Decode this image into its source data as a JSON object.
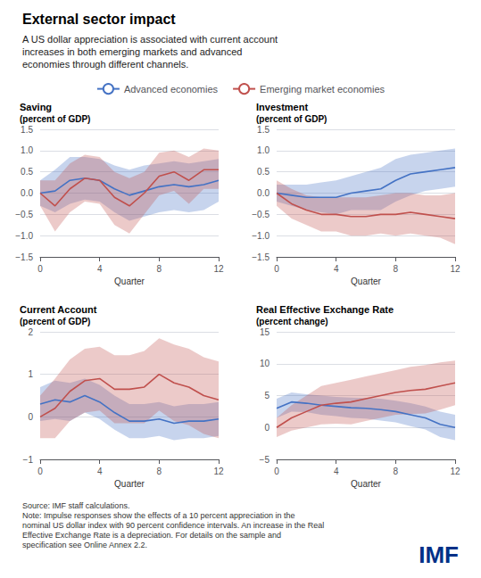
{
  "title": "External sector impact",
  "subtitle": "A US dollar appreciation is associated with current account\nincreases in both emerging markets and advanced\neconomies through different channels.",
  "legend": "upper center",
  "annotations": [
    {
      "text": "Source: IMF staff calculations.\nNote: Impulse responses show the effects of a 10 percent appreciation in the\nnominal US dollar index with 90 percent confidence intervals. An increase in the Real\nEffective Exchange Rate is a depreciation. For details on the sample and\nspecification see Online Annex 2.2."
    },
    {
      "text": "IMF",
      "color": "#003087"
    }
  ],
  "chart_data": [
    {
      "type": "line",
      "title": "Saving",
      "ylabel": "(percent of GDP)",
      "xlabel": "Quarter",
      "x": [
        0,
        1,
        2,
        3,
        4,
        5,
        6,
        7,
        8,
        9,
        10,
        11,
        12
      ],
      "xlim": [
        0,
        12
      ],
      "xticks": [
        0,
        4,
        8,
        12
      ],
      "ylim": [
        -1.5,
        1.5
      ],
      "yticks": [
        {
          "value": -1.5,
          "label": "−1.5"
        },
        {
          "value": -1.0,
          "label": "−1.0"
        },
        {
          "value": -0.5,
          "label": "−0.5"
        },
        {
          "value": 0.0,
          "label": "0.0"
        },
        0.5,
        {
          "value": 1.0,
          "label": "1.0"
        },
        1.5
      ],
      "grid": true,
      "series": [
        {
          "name": "Advanced economies",
          "color": "#4472c4",
          "values": [
            0.0,
            0.05,
            0.3,
            0.35,
            0.3,
            0.1,
            -0.05,
            0.05,
            0.15,
            0.2,
            0.15,
            0.2,
            0.3
          ],
          "upper": [
            0.3,
            0.55,
            0.85,
            0.85,
            0.8,
            0.65,
            0.55,
            0.65,
            0.7,
            0.75,
            0.7,
            0.75,
            0.8
          ],
          "lower": [
            -0.3,
            -0.45,
            -0.25,
            -0.15,
            -0.2,
            -0.45,
            -0.65,
            -0.55,
            -0.45,
            -0.4,
            -0.45,
            -0.4,
            -0.2
          ]
        },
        {
          "name": "Emerging market economies",
          "color": "#c0504d",
          "values": [
            0.0,
            -0.3,
            0.1,
            0.35,
            0.3,
            -0.1,
            -0.3,
            0.0,
            0.4,
            0.5,
            0.3,
            0.55,
            0.55
          ],
          "upper": [
            0.3,
            0.3,
            0.7,
            0.9,
            0.85,
            0.5,
            0.35,
            0.5,
            0.95,
            1.0,
            0.85,
            1.05,
            1.0
          ],
          "lower": [
            -0.3,
            -0.9,
            -0.45,
            -0.2,
            -0.25,
            -0.75,
            -0.95,
            -0.5,
            -0.05,
            0.05,
            -0.25,
            0.1,
            0.1
          ]
        }
      ]
    },
    {
      "type": "line",
      "title": "Investment",
      "ylabel": "(percent of GDP)",
      "xlabel": "Quarter",
      "x": [
        0,
        1,
        2,
        3,
        4,
        5,
        6,
        7,
        8,
        9,
        10,
        11,
        12
      ],
      "xlim": [
        0,
        12
      ],
      "xticks": [
        0,
        4,
        8,
        12
      ],
      "ylim": [
        -1.5,
        1.5
      ],
      "yticks": [
        {
          "value": -1.5,
          "label": "−1.5"
        },
        {
          "value": -1.0,
          "label": "−1.0"
        },
        {
          "value": -0.5,
          "label": "−0.5"
        },
        {
          "value": 0.0,
          "label": "0.0"
        },
        0.5,
        {
          "value": 1.0,
          "label": "1.0"
        },
        1.5
      ],
      "grid": true,
      "series": [
        {
          "name": "Advanced economies",
          "color": "#4472c4",
          "values": [
            0.0,
            -0.05,
            -0.1,
            -0.1,
            -0.1,
            0.0,
            0.05,
            0.1,
            0.3,
            0.45,
            0.5,
            0.55,
            0.6
          ],
          "upper": [
            0.2,
            0.2,
            0.2,
            0.25,
            0.3,
            0.4,
            0.5,
            0.6,
            0.8,
            0.9,
            0.95,
            1.0,
            1.05
          ],
          "lower": [
            -0.2,
            -0.3,
            -0.4,
            -0.45,
            -0.5,
            -0.4,
            -0.4,
            -0.4,
            -0.2,
            -0.05,
            0.05,
            0.1,
            0.15
          ]
        },
        {
          "name": "Emerging market economies",
          "color": "#c0504d",
          "values": [
            0.0,
            -0.25,
            -0.4,
            -0.5,
            -0.5,
            -0.55,
            -0.55,
            -0.5,
            -0.5,
            -0.45,
            -0.5,
            -0.55,
            -0.6
          ],
          "upper": [
            0.3,
            0.1,
            -0.05,
            -0.1,
            -0.1,
            -0.1,
            -0.1,
            -0.05,
            0.0,
            0.0,
            -0.05,
            -0.05,
            0.0
          ],
          "lower": [
            -0.3,
            -0.6,
            -0.75,
            -0.9,
            -0.9,
            -1.0,
            -1.0,
            -0.95,
            -1.0,
            -0.95,
            -1.0,
            -1.05,
            -1.2
          ]
        }
      ]
    },
    {
      "type": "line",
      "title": "Current Account",
      "ylabel": "(percent of GDP)",
      "xlabel": "Quarter",
      "x": [
        0,
        1,
        2,
        3,
        4,
        5,
        6,
        7,
        8,
        9,
        10,
        11,
        12
      ],
      "xlim": [
        0,
        12
      ],
      "xticks": [
        0,
        4,
        8,
        12
      ],
      "ylim": [
        -1.0,
        2.0
      ],
      "yticks": [
        {
          "value": -1,
          "label": "−1"
        },
        0,
        1,
        2
      ],
      "grid": true,
      "series": [
        {
          "name": "Advanced economies",
          "color": "#4472c4",
          "values": [
            0.3,
            0.4,
            0.35,
            0.5,
            0.35,
            0.1,
            -0.1,
            -0.1,
            -0.05,
            -0.15,
            -0.1,
            -0.1,
            -0.05
          ],
          "upper": [
            0.7,
            0.85,
            0.8,
            0.9,
            0.75,
            0.5,
            0.3,
            0.3,
            0.35,
            0.25,
            0.3,
            0.3,
            0.35
          ],
          "lower": [
            -0.1,
            -0.05,
            -0.1,
            0.1,
            -0.05,
            -0.3,
            -0.5,
            -0.5,
            -0.45,
            -0.55,
            -0.5,
            -0.5,
            -0.45
          ]
        },
        {
          "name": "Emerging market economies",
          "color": "#c0504d",
          "values": [
            0.0,
            0.2,
            0.6,
            0.85,
            0.9,
            0.65,
            0.65,
            0.7,
            1.0,
            0.8,
            0.7,
            0.5,
            0.4
          ],
          "upper": [
            0.5,
            0.9,
            1.35,
            1.6,
            1.65,
            1.45,
            1.45,
            1.55,
            1.85,
            1.7,
            1.6,
            1.4,
            1.3
          ],
          "lower": [
            -0.5,
            -0.5,
            -0.1,
            0.1,
            0.15,
            -0.15,
            -0.15,
            -0.15,
            0.15,
            -0.1,
            -0.2,
            -0.4,
            -0.5
          ]
        }
      ]
    },
    {
      "type": "line",
      "title": "Real Effective Exchange Rate",
      "ylabel": "(percent change)",
      "xlabel": "Quarter",
      "x": [
        0,
        1,
        2,
        3,
        4,
        5,
        6,
        7,
        8,
        9,
        10,
        11,
        12
      ],
      "xlim": [
        0,
        12
      ],
      "xticks": [
        0,
        4,
        8,
        12
      ],
      "ylim": [
        -5.0,
        15.0
      ],
      "yticks": [
        {
          "value": -5,
          "label": "−5"
        },
        0,
        5,
        10,
        15
      ],
      "grid": true,
      "series": [
        {
          "name": "Advanced economies",
          "color": "#4472c4",
          "values": [
            3.0,
            4.0,
            3.8,
            3.5,
            3.3,
            3.1,
            3.0,
            2.8,
            2.5,
            2.0,
            1.5,
            0.5,
            0.0
          ],
          "upper": [
            4.5,
            5.5,
            5.2,
            5.0,
            4.8,
            4.7,
            4.6,
            4.5,
            4.2,
            3.8,
            3.3,
            2.5,
            2.0
          ],
          "lower": [
            1.5,
            2.5,
            2.4,
            2.0,
            1.8,
            1.5,
            1.4,
            1.1,
            0.8,
            0.2,
            -0.3,
            -1.5,
            -2.0
          ]
        },
        {
          "name": "Emerging market economies",
          "color": "#c0504d",
          "values": [
            0.0,
            1.5,
            2.5,
            3.5,
            3.8,
            4.0,
            4.5,
            5.0,
            5.5,
            5.8,
            6.0,
            6.5,
            7.0
          ],
          "upper": [
            1.5,
            3.5,
            5.0,
            6.5,
            7.0,
            7.5,
            8.0,
            8.5,
            9.0,
            9.5,
            9.8,
            10.2,
            10.5
          ],
          "lower": [
            -1.5,
            -0.5,
            0.0,
            0.5,
            0.6,
            0.5,
            1.0,
            1.5,
            2.0,
            2.1,
            2.2,
            2.8,
            3.5
          ]
        }
      ]
    }
  ]
}
